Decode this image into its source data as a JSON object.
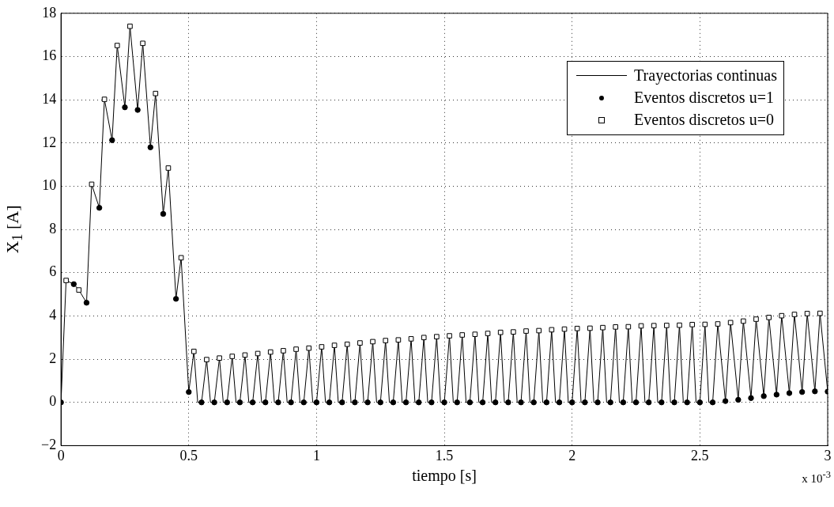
{
  "chart_data": {
    "type": "line",
    "xlabel": "tiempo [s]",
    "ylabel": "X$_{1}$ [A]",
    "annotations": [
      "x 10$^{-3}$"
    ],
    "xlim": [
      0,
      3
    ],
    "xticks": [
      0,
      0.5,
      1,
      1.5,
      2,
      2.5,
      3
    ],
    "ylim": [
      -2,
      18
    ],
    "yticks": [
      {
        "value": -2,
        "label": "−2"
      },
      0,
      2,
      4,
      6,
      8,
      10,
      12,
      14,
      16,
      18
    ],
    "grid": true,
    "legend": "top right",
    "series": [
      {
        "name": "Trayectorias continuas",
        "type": "line",
        "marker": "none",
        "color": "#000000",
        "x": [
          0,
          0.02,
          0.05,
          0.07,
          0.1,
          0.12,
          0.15,
          0.17,
          0.2,
          0.22,
          0.25,
          0.27,
          0.3,
          0.32,
          0.35,
          0.37,
          0.4,
          0.42,
          0.45,
          0.47,
          0.5,
          0.52,
          0.535,
          0.55,
          0.57,
          0.585,
          0.6,
          0.62,
          0.635,
          0.65,
          0.67,
          0.685,
          0.7,
          0.72,
          0.735,
          0.75,
          0.77,
          0.785,
          0.8,
          0.82,
          0.835,
          0.85,
          0.87,
          0.885,
          0.9,
          0.92,
          0.935,
          0.95,
          0.97,
          0.985,
          1.0,
          1.02,
          1.035,
          1.05,
          1.07,
          1.085,
          1.1,
          1.12,
          1.135,
          1.15,
          1.17,
          1.185,
          1.2,
          1.22,
          1.235,
          1.25,
          1.27,
          1.285,
          1.3,
          1.32,
          1.335,
          1.35,
          1.37,
          1.385,
          1.4,
          1.42,
          1.435,
          1.45,
          1.47,
          1.485,
          1.5,
          1.52,
          1.535,
          1.55,
          1.57,
          1.585,
          1.6,
          1.62,
          1.635,
          1.65,
          1.67,
          1.685,
          1.7,
          1.72,
          1.735,
          1.75,
          1.77,
          1.785,
          1.8,
          1.82,
          1.835,
          1.85,
          1.87,
          1.885,
          1.9,
          1.92,
          1.935,
          1.95,
          1.97,
          1.985,
          2.0,
          2.02,
          2.035,
          2.05,
          2.07,
          2.085,
          2.1,
          2.12,
          2.135,
          2.15,
          2.17,
          2.185,
          2.2,
          2.22,
          2.235,
          2.25,
          2.27,
          2.285,
          2.3,
          2.32,
          2.335,
          2.35,
          2.37,
          2.385,
          2.4,
          2.42,
          2.435,
          2.45,
          2.47,
          2.485,
          2.5,
          2.52,
          2.535,
          2.55,
          2.57,
          2.6,
          2.62,
          2.65,
          2.67,
          2.7,
          2.72,
          2.75,
          2.77,
          2.8,
          2.82,
          2.85,
          2.87,
          2.9,
          2.92,
          2.95,
          2.97,
          3.0
        ],
        "values": [
          0,
          5.64,
          5.47,
          5.2,
          4.61,
          10.09,
          9.0,
          14.02,
          12.13,
          16.51,
          13.65,
          17.4,
          13.53,
          16.61,
          11.8,
          14.29,
          8.72,
          10.84,
          4.79,
          6.69,
          0.48,
          2.36,
          0,
          0,
          1.98,
          0,
          0,
          2.05,
          0,
          0,
          2.13,
          0,
          0,
          2.19,
          0,
          0,
          2.26,
          0,
          0,
          2.33,
          0,
          0,
          2.39,
          0,
          0,
          2.46,
          0,
          0,
          2.51,
          0,
          0,
          2.57,
          0,
          0,
          2.64,
          0,
          0,
          2.69,
          0,
          0,
          2.75,
          0,
          0,
          2.81,
          0,
          0,
          2.86,
          0,
          0,
          2.89,
          0,
          0,
          2.94,
          0,
          0,
          3.0,
          0,
          0,
          3.04,
          0,
          0,
          3.08,
          0,
          0,
          3.12,
          0,
          0,
          3.15,
          0,
          0,
          3.19,
          0,
          0,
          3.24,
          0,
          0,
          3.26,
          0,
          0,
          3.3,
          0,
          0,
          3.32,
          0,
          0,
          3.36,
          0,
          0,
          3.39,
          0,
          0,
          3.42,
          0,
          0,
          3.43,
          0,
          0,
          3.46,
          0,
          0,
          3.49,
          0,
          0,
          3.5,
          0,
          0,
          3.54,
          0,
          0,
          3.55,
          0,
          0,
          3.56,
          0,
          0,
          3.57,
          0,
          0,
          3.6,
          0,
          0,
          3.61,
          0,
          0,
          3.63,
          0.06,
          3.69,
          0.12,
          3.76,
          0.2,
          3.85,
          0.29,
          3.93,
          0.36,
          4.01,
          0.43,
          4.07,
          0.48,
          4.11,
          0.51,
          4.12,
          0.5
        ]
      },
      {
        "name": "Eventos discretos u=1",
        "type": "scatter",
        "marker": "circle",
        "color": "#000000",
        "x": [
          0,
          0.05,
          0.1,
          0.15,
          0.2,
          0.25,
          0.3,
          0.35,
          0.4,
          0.45,
          0.5,
          0.55,
          0.6,
          0.65,
          0.7,
          0.75,
          0.8,
          0.85,
          0.9,
          0.95,
          1.0,
          1.05,
          1.1,
          1.15,
          1.2,
          1.25,
          1.3,
          1.35,
          1.4,
          1.45,
          1.5,
          1.55,
          1.6,
          1.65,
          1.7,
          1.75,
          1.8,
          1.85,
          1.9,
          1.95,
          2.0,
          2.05,
          2.1,
          2.15,
          2.2,
          2.25,
          2.3,
          2.35,
          2.4,
          2.45,
          2.5,
          2.55,
          2.6,
          2.65,
          2.7,
          2.75,
          2.8,
          2.85,
          2.9,
          2.95,
          3.0
        ],
        "values": [
          0,
          5.47,
          4.61,
          9.0,
          12.13,
          13.65,
          13.53,
          11.8,
          8.72,
          4.79,
          0.48,
          0,
          0,
          0,
          0,
          0,
          0,
          0,
          0,
          0,
          0,
          0,
          0,
          0,
          0,
          0,
          0,
          0,
          0,
          0,
          0,
          0,
          0,
          0,
          0,
          0,
          0,
          0,
          0,
          0,
          0,
          0,
          0,
          0,
          0,
          0,
          0,
          0,
          0,
          0,
          0,
          0,
          0.06,
          0.12,
          0.2,
          0.29,
          0.36,
          0.43,
          0.48,
          0.51,
          0.5
        ]
      },
      {
        "name": "Eventos discretos u=0",
        "type": "scatter",
        "marker": "square",
        "color": "#000000",
        "x": [
          0.02,
          0.07,
          0.12,
          0.17,
          0.22,
          0.27,
          0.32,
          0.37,
          0.42,
          0.47,
          0.52,
          0.57,
          0.62,
          0.67,
          0.72,
          0.77,
          0.82,
          0.87,
          0.92,
          0.97,
          1.02,
          1.07,
          1.12,
          1.17,
          1.22,
          1.27,
          1.32,
          1.37,
          1.42,
          1.47,
          1.52,
          1.57,
          1.62,
          1.67,
          1.72,
          1.77,
          1.82,
          1.87,
          1.92,
          1.97,
          2.02,
          2.07,
          2.12,
          2.17,
          2.22,
          2.27,
          2.32,
          2.37,
          2.42,
          2.47,
          2.52,
          2.57,
          2.62,
          2.67,
          2.72,
          2.77,
          2.82,
          2.87,
          2.92,
          2.97
        ],
        "values": [
          5.64,
          5.2,
          10.09,
          14.02,
          16.51,
          17.4,
          16.61,
          14.29,
          10.84,
          6.69,
          2.36,
          1.98,
          2.05,
          2.13,
          2.19,
          2.26,
          2.33,
          2.39,
          2.46,
          2.51,
          2.57,
          2.64,
          2.69,
          2.75,
          2.81,
          2.86,
          2.89,
          2.94,
          3.0,
          3.04,
          3.08,
          3.12,
          3.15,
          3.19,
          3.24,
          3.26,
          3.3,
          3.32,
          3.36,
          3.39,
          3.42,
          3.43,
          3.46,
          3.49,
          3.5,
          3.54,
          3.55,
          3.56,
          3.57,
          3.6,
          3.61,
          3.63,
          3.69,
          3.76,
          3.85,
          3.93,
          4.01,
          4.07,
          4.11,
          4.12
        ]
      }
    ]
  }
}
